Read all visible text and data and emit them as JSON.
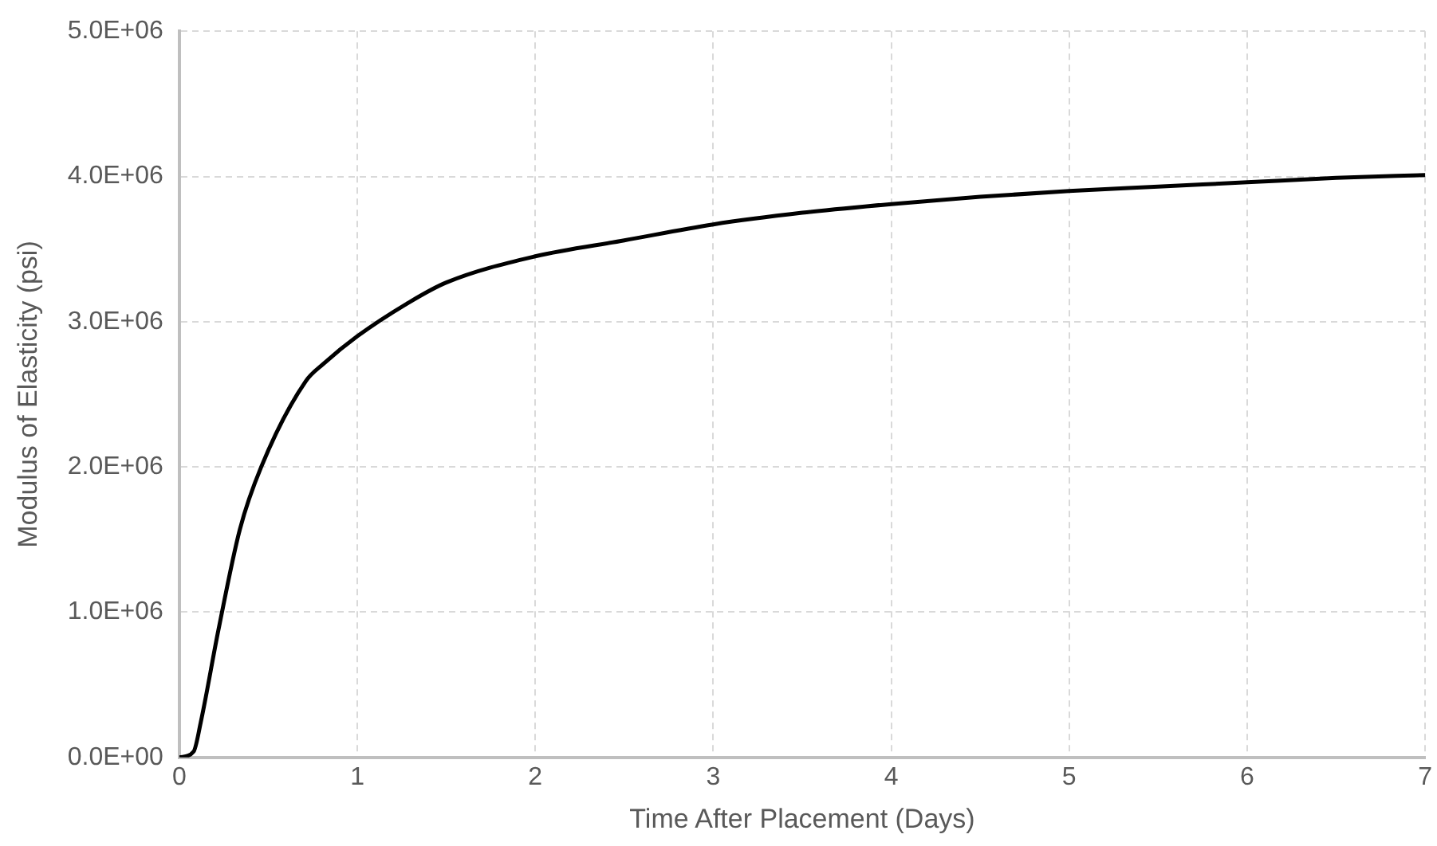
{
  "chart_data": {
    "type": "line",
    "xlabel": "Time After Placement (Days)",
    "ylabel": "Modulus of Elasticity (psi)",
    "xlim": [
      0,
      7
    ],
    "xticks": [
      0,
      1,
      2,
      3,
      4,
      5,
      6,
      7
    ],
    "ylim": [
      0,
      5000000
    ],
    "yticks": [
      {
        "value": 0,
        "label": "0.0E+00"
      },
      {
        "value": 1000000,
        "label": "1.0E+06"
      },
      {
        "value": 2000000,
        "label": "2.0E+06"
      },
      {
        "value": 3000000,
        "label": "3.0E+06"
      },
      {
        "value": 4000000,
        "label": "4.0E+06"
      },
      {
        "value": 5000000,
        "label": "5.0E+06"
      }
    ],
    "grid": true,
    "marker": "none",
    "line_style": "solid",
    "series": [
      {
        "color": "#000000",
        "x": [
          0,
          0.08,
          0.12,
          0.22,
          0.34,
          0.46,
          0.71,
          0.81,
          1.0,
          1.3,
          1.5,
          2,
          2.5,
          3,
          3.5,
          4,
          4.5,
          5,
          5.5,
          6,
          6.5,
          7
        ],
        "values": [
          0,
          40000,
          240000,
          880000,
          1570000,
          2000000,
          2590000,
          2710000,
          2900000,
          3140000,
          3270000,
          3450000,
          3560000,
          3670000,
          3750000,
          3810000,
          3860000,
          3900000,
          3930000,
          3960000,
          3990000,
          4010000
        ]
      }
    ]
  }
}
